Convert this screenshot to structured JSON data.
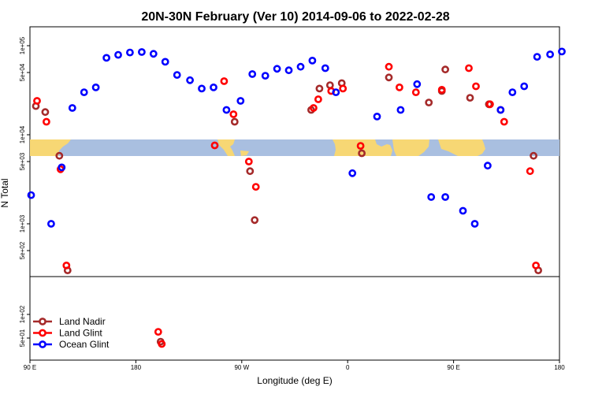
{
  "chart_data": {
    "type": "scatter",
    "title": "20N-30N February (Ver 10)   2014-09-06 to 2022-02-28",
    "xlabel": "Longitude (deg E)",
    "ylabel": "N Total",
    "x_scale": "longitude starting at 90 E",
    "y_scale": "log",
    "x_ticks": [
      {
        "lon": 90,
        "label": "90 E"
      },
      {
        "lon": 180,
        "label": "180"
      },
      {
        "lon": 270,
        "label": "90 W"
      },
      {
        "lon": 360,
        "label": "0"
      },
      {
        "lon": 450,
        "label": "90 E"
      },
      {
        "lon": 540,
        "label": "180"
      }
    ],
    "y_ticks_upper": [
      {
        "value": 500,
        "label": "5e+02"
      },
      {
        "value": 1000,
        "label": "1e+03"
      },
      {
        "value": 5000,
        "label": "5e+03"
      },
      {
        "value": 10000,
        "label": "1e+04"
      },
      {
        "value": 50000,
        "label": "5e+04"
      },
      {
        "value": 100000,
        "label": "1e+05"
      }
    ],
    "y_ticks_lower": [
      {
        "value": 50,
        "label": "5e+01"
      },
      {
        "value": 100,
        "label": "1e+02"
      }
    ],
    "ylim_upper": [
      200,
      140000
    ],
    "ylim_lower": [
      30,
      400
    ],
    "legend_position": "bottom-left",
    "series": [
      {
        "name": "Land Nadir",
        "color": "#a52a2a",
        "points": [
          [
            95,
            21000
          ],
          [
            103,
            18000
          ],
          [
            115,
            5800
          ],
          [
            122,
            300
          ],
          [
            201,
            45
          ],
          [
            264,
            14000
          ],
          [
            277,
            3900
          ],
          [
            281,
            1100
          ],
          [
            329,
            19000
          ],
          [
            336,
            33000
          ],
          [
            345,
            36000
          ],
          [
            355,
            38000
          ],
          [
            372,
            6200
          ],
          [
            395,
            44000
          ],
          [
            429,
            23000
          ],
          [
            440,
            31000
          ],
          [
            443,
            54000
          ],
          [
            464,
            26000
          ],
          [
            480,
            22000
          ],
          [
            490,
            19000
          ],
          [
            518,
            5800
          ],
          [
            522,
            300
          ]
        ]
      },
      {
        "name": "Land Glint",
        "color": "#ff0000",
        "points": [
          [
            96,
            24000
          ],
          [
            104,
            14000
          ],
          [
            116,
            4100
          ],
          [
            121,
            340
          ],
          [
            199,
            60
          ],
          [
            202,
            42
          ],
          [
            247,
            7600
          ],
          [
            255,
            40000
          ],
          [
            263,
            17000
          ],
          [
            276,
            5000
          ],
          [
            282,
            2600
          ],
          [
            331,
            20000
          ],
          [
            335,
            25000
          ],
          [
            346,
            31000
          ],
          [
            356,
            33000
          ],
          [
            371,
            7500
          ],
          [
            395,
            58000
          ],
          [
            404,
            34000
          ],
          [
            418,
            30000
          ],
          [
            440,
            32000
          ],
          [
            463,
            56000
          ],
          [
            469,
            35000
          ],
          [
            481,
            22000
          ],
          [
            493,
            14000
          ],
          [
            515,
            3900
          ],
          [
            520,
            340
          ]
        ]
      },
      {
        "name": "Ocean Glint",
        "color": "#0000ff",
        "points": [
          [
            91,
            2100
          ],
          [
            108,
            1000
          ],
          [
            117,
            4300
          ],
          [
            126,
            20000
          ],
          [
            136,
            30000
          ],
          [
            146,
            34000
          ],
          [
            155,
            73000
          ],
          [
            165,
            79000
          ],
          [
            175,
            84000
          ],
          [
            185,
            85000
          ],
          [
            195,
            81000
          ],
          [
            205,
            66000
          ],
          [
            215,
            47000
          ],
          [
            226,
            41000
          ],
          [
            236,
            33000
          ],
          [
            246,
            34000
          ],
          [
            257,
            19000
          ],
          [
            269,
            24000
          ],
          [
            279,
            48000
          ],
          [
            290,
            46000
          ],
          [
            300,
            55000
          ],
          [
            310,
            53000
          ],
          [
            320,
            58000
          ],
          [
            330,
            68000
          ],
          [
            341,
            56000
          ],
          [
            350,
            30000
          ],
          [
            364,
            3700
          ],
          [
            385,
            16000
          ],
          [
            405,
            19000
          ],
          [
            419,
            37000
          ],
          [
            431,
            2000
          ],
          [
            443,
            2000
          ],
          [
            458,
            1400
          ],
          [
            468,
            1000
          ],
          [
            479,
            4500
          ],
          [
            490,
            19000
          ],
          [
            500,
            30000
          ],
          [
            510,
            35000
          ],
          [
            521,
            75000
          ],
          [
            532,
            80000
          ],
          [
            542,
            86000
          ]
        ]
      }
    ]
  }
}
